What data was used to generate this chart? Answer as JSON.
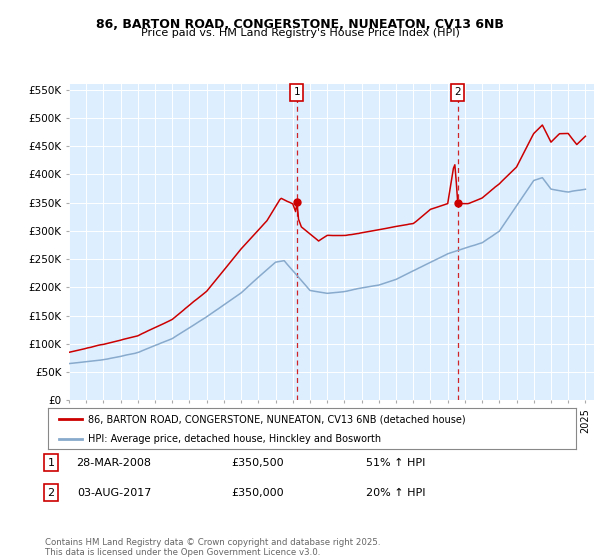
{
  "title_line1": "86, BARTON ROAD, CONGERSTONE, NUNEATON, CV13 6NB",
  "title_line2": "Price paid vs. HM Land Registry's House Price Index (HPI)",
  "bg_color": "#ffffff",
  "plot_bg_color": "#ddeeff",
  "grid_color": "#ffffff",
  "red_color": "#cc0000",
  "blue_color": "#88aacc",
  "marker_edge_color": "#cc0000",
  "ylim": [
    0,
    560000
  ],
  "ytick_values": [
    0,
    50000,
    100000,
    150000,
    200000,
    250000,
    300000,
    350000,
    400000,
    450000,
    500000,
    550000
  ],
  "ytick_labels": [
    "£0",
    "£50K",
    "£100K",
    "£150K",
    "£200K",
    "£250K",
    "£300K",
    "£350K",
    "£400K",
    "£450K",
    "£500K",
    "£550K"
  ],
  "xlim_start": 1995,
  "xlim_end": 2025.5,
  "year1": 2008.23,
  "year2": 2017.59,
  "price1": 350500,
  "price2": 350000,
  "event1_date": "28-MAR-2008",
  "event1_price": "£350,500",
  "event1_change": "51% ↑ HPI",
  "event2_date": "03-AUG-2017",
  "event2_price": "£350,000",
  "event2_change": "20% ↑ HPI",
  "legend_line1": "86, BARTON ROAD, CONGERSTONE, NUNEATON, CV13 6NB (detached house)",
  "legend_line2": "HPI: Average price, detached house, Hinckley and Bosworth",
  "footer": "Contains HM Land Registry data © Crown copyright and database right 2025.\nThis data is licensed under the Open Government Licence v3.0."
}
